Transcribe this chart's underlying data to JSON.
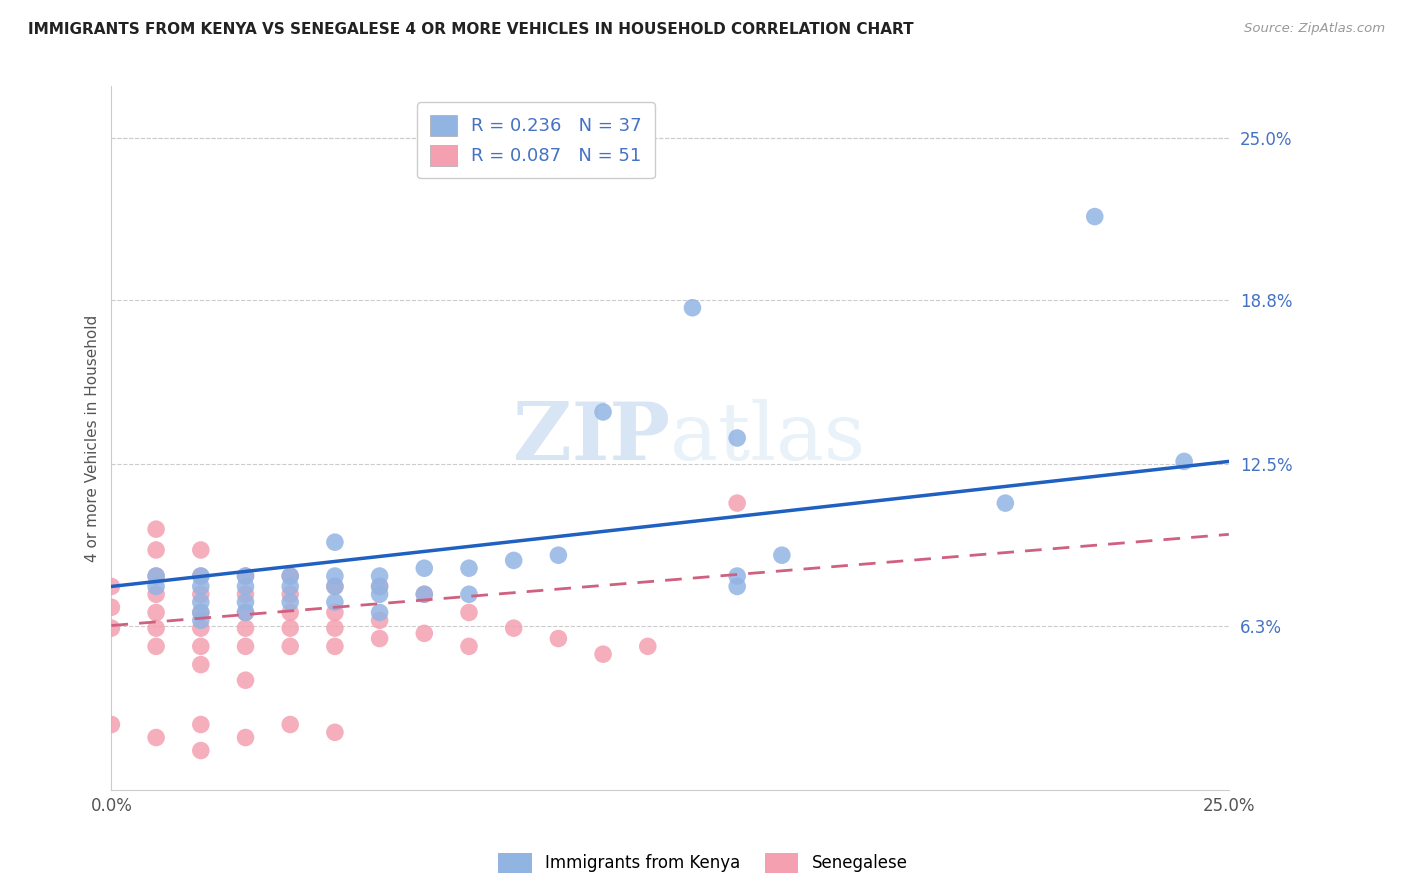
{
  "title": "IMMIGRANTS FROM KENYA VS SENEGALESE 4 OR MORE VEHICLES IN HOUSEHOLD CORRELATION CHART",
  "source": "Source: ZipAtlas.com",
  "ylabel": "4 or more Vehicles in Household",
  "right_yticks": [
    "25.0%",
    "18.8%",
    "12.5%",
    "6.3%"
  ],
  "right_ytick_vals": [
    0.25,
    0.188,
    0.125,
    0.063
  ],
  "xlim": [
    0.0,
    0.25
  ],
  "ylim": [
    0.0,
    0.27
  ],
  "kenya_R": 0.236,
  "kenya_N": 37,
  "senegal_R": 0.087,
  "senegal_N": 51,
  "kenya_color": "#92b4e3",
  "senegal_color": "#f4a0b0",
  "kenya_line_color": "#2060c0",
  "senegal_line_color": "#d06080",
  "watermark_zip": "ZIP",
  "watermark_atlas": "atlas",
  "kenya_points_x": [
    0.06,
    0.06,
    0.06,
    0.05,
    0.05,
    0.05,
    0.04,
    0.04,
    0.04,
    0.03,
    0.03,
    0.03,
    0.03,
    0.02,
    0.02,
    0.02,
    0.02,
    0.02,
    0.01,
    0.01,
    0.08,
    0.08,
    0.07,
    0.07,
    0.06,
    0.05,
    0.09,
    0.1,
    0.11,
    0.14,
    0.13,
    0.22,
    0.14,
    0.15,
    0.14,
    0.24,
    0.2
  ],
  "kenya_points_y": [
    0.082,
    0.078,
    0.075,
    0.082,
    0.078,
    0.072,
    0.082,
    0.078,
    0.072,
    0.082,
    0.078,
    0.072,
    0.068,
    0.082,
    0.078,
    0.072,
    0.068,
    0.065,
    0.082,
    0.078,
    0.085,
    0.075,
    0.085,
    0.075,
    0.068,
    0.095,
    0.088,
    0.09,
    0.145,
    0.135,
    0.185,
    0.22,
    0.082,
    0.09,
    0.078,
    0.126,
    0.11
  ],
  "senegal_points_x": [
    0.0,
    0.0,
    0.0,
    0.0,
    0.01,
    0.01,
    0.01,
    0.01,
    0.01,
    0.01,
    0.01,
    0.01,
    0.02,
    0.02,
    0.02,
    0.02,
    0.02,
    0.02,
    0.02,
    0.02,
    0.03,
    0.03,
    0.03,
    0.03,
    0.03,
    0.03,
    0.04,
    0.04,
    0.04,
    0.04,
    0.04,
    0.05,
    0.05,
    0.05,
    0.05,
    0.06,
    0.06,
    0.06,
    0.07,
    0.07,
    0.08,
    0.08,
    0.09,
    0.1,
    0.11,
    0.12,
    0.14,
    0.02,
    0.03,
    0.04,
    0.05
  ],
  "senegal_points_y": [
    0.078,
    0.07,
    0.062,
    0.025,
    0.1,
    0.092,
    0.082,
    0.075,
    0.068,
    0.062,
    0.055,
    0.02,
    0.092,
    0.082,
    0.075,
    0.068,
    0.062,
    0.055,
    0.048,
    0.025,
    0.082,
    0.075,
    0.068,
    0.062,
    0.055,
    0.042,
    0.082,
    0.075,
    0.068,
    0.062,
    0.055,
    0.078,
    0.068,
    0.062,
    0.055,
    0.078,
    0.065,
    0.058,
    0.075,
    0.06,
    0.068,
    0.055,
    0.062,
    0.058,
    0.052,
    0.055,
    0.11,
    0.015,
    0.02,
    0.025,
    0.022
  ]
}
